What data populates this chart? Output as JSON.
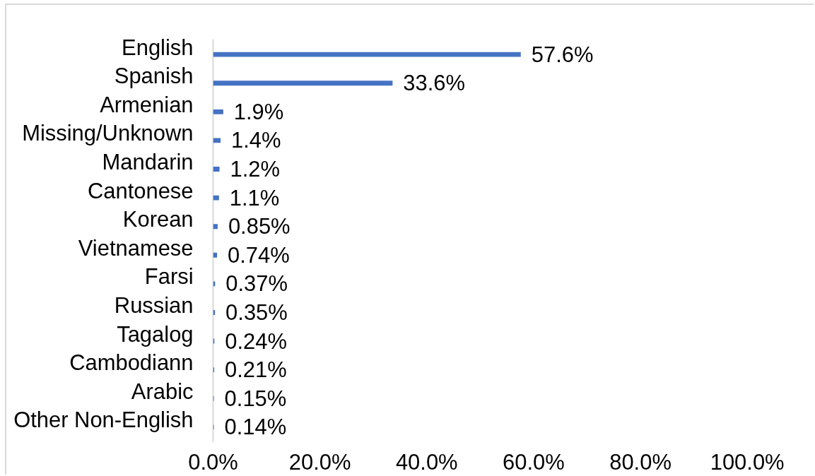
{
  "chart_data": {
    "type": "bar",
    "orientation": "horizontal",
    "categories": [
      "English",
      "Spanish",
      "Armenian",
      "Missing/Unknown",
      "Mandarin",
      "Cantonese",
      "Korean",
      "Vietnamese",
      "Farsi",
      "Russian",
      "Tagalog",
      "Cambodiann",
      "Arabic",
      "Other Non-English"
    ],
    "values": [
      57.6,
      33.6,
      1.9,
      1.4,
      1.2,
      1.1,
      0.85,
      0.74,
      0.37,
      0.35,
      0.24,
      0.21,
      0.15,
      0.14
    ],
    "value_labels": [
      "57.6%",
      "33.6%",
      "1.9%",
      "1.4%",
      "1.2%",
      "1.1%",
      "0.85%",
      "0.74%",
      "0.37%",
      "0.35%",
      "0.24%",
      "0.21%",
      "0.15%",
      "0.14%"
    ],
    "color": "#4472c4",
    "xlim": [
      0,
      100
    ],
    "xticks": [
      {
        "value": 0,
        "label": "0.0%"
      },
      {
        "value": 20,
        "label": "20.0%"
      },
      {
        "value": 40,
        "label": "40.0%"
      },
      {
        "value": 60,
        "label": "60.0%"
      },
      {
        "value": 80,
        "label": "80.0%"
      },
      {
        "value": 100,
        "label": "100.0%"
      }
    ],
    "grid": false
  }
}
